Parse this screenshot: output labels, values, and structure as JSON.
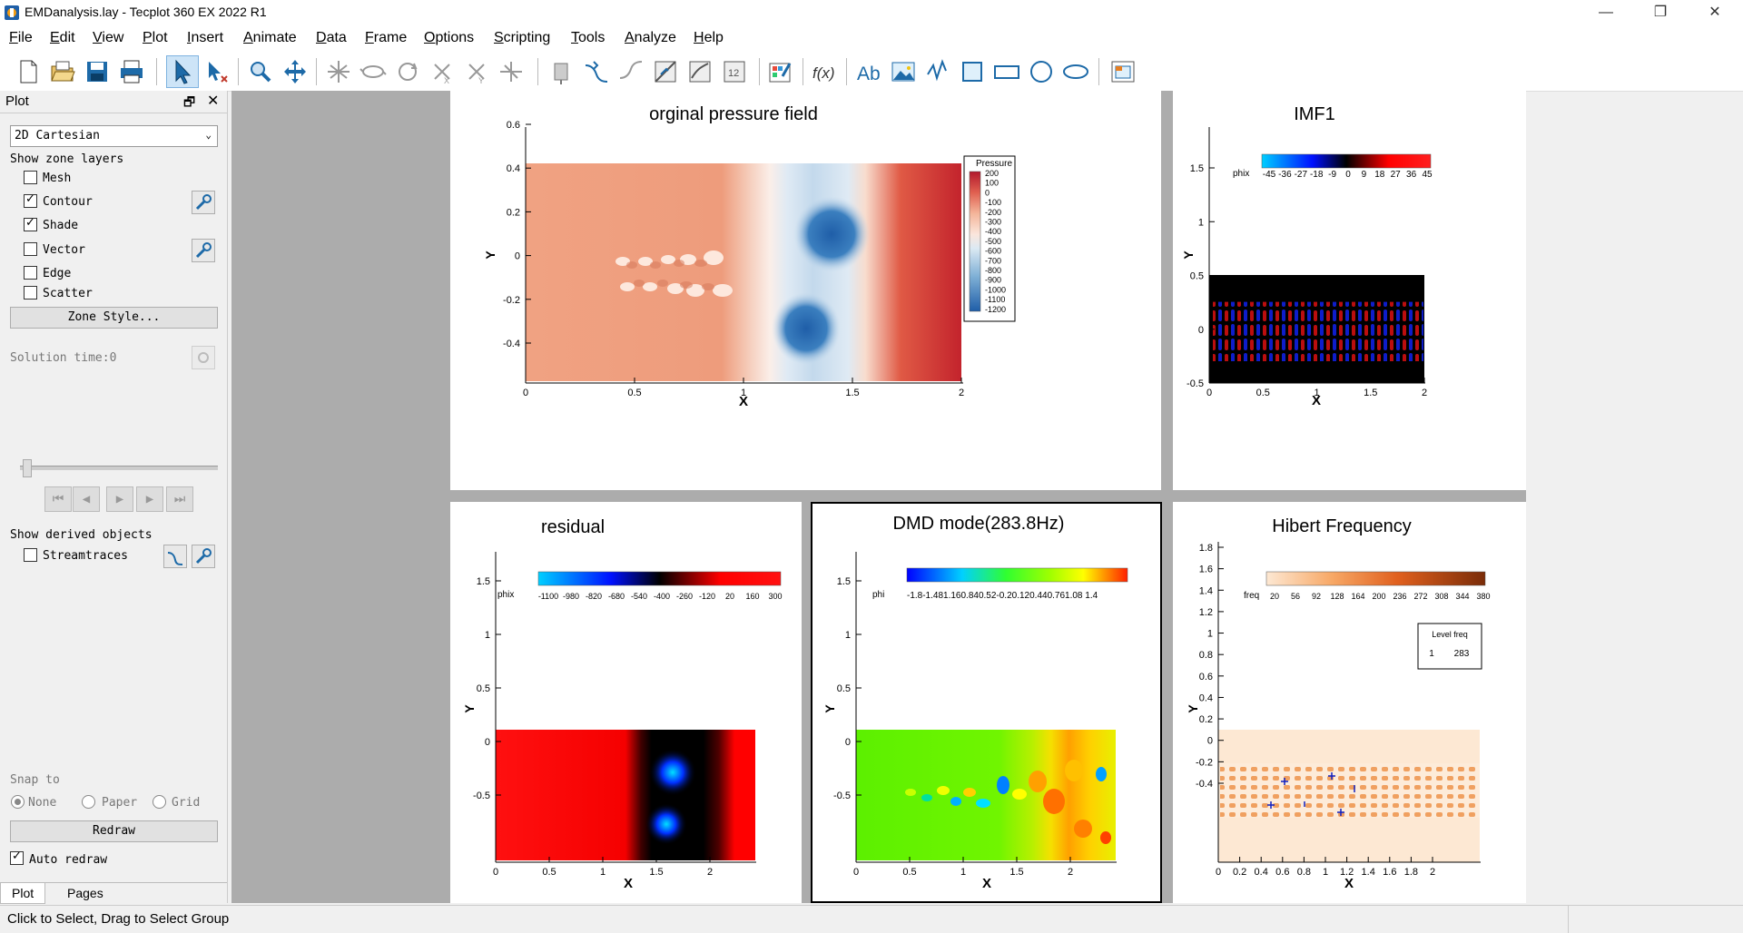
{
  "window": {
    "title": "EMDanalysis.lay - Tecplot 360 EX 2022 R1",
    "minimize": "—",
    "maximize": "❐",
    "close": "✕"
  },
  "menu": [
    {
      "label": "File",
      "u": "F",
      "rest": "ile"
    },
    {
      "label": "Edit",
      "u": "E",
      "rest": "dit"
    },
    {
      "label": "View",
      "u": "V",
      "rest": "iew"
    },
    {
      "label": "Plot",
      "u": "P",
      "rest": "lot"
    },
    {
      "label": "Insert",
      "u": "I",
      "rest": "nsert"
    },
    {
      "label": "Animate",
      "u": "A",
      "rest": "nimate"
    },
    {
      "label": "Data",
      "u": "D",
      "rest": "ata"
    },
    {
      "label": "Frame",
      "u": "F",
      "rest": "rame"
    },
    {
      "label": "Options",
      "u": "O",
      "rest": "ptions"
    },
    {
      "label": "Scripting",
      "u": "S",
      "rest": "cripting"
    },
    {
      "label": "Tools",
      "u": "T",
      "rest": "ools"
    },
    {
      "label": "Analyze",
      "u": "A",
      "rest": "nalyze"
    },
    {
      "label": "Help",
      "u": "H",
      "rest": "elp"
    }
  ],
  "sidebar": {
    "title": "Plot",
    "plot_type": "2D Cartesian",
    "show_zone_layers": "Show zone layers",
    "layers": [
      {
        "label": "Mesh",
        "checked": false
      },
      {
        "label": "Contour",
        "checked": true
      },
      {
        "label": "Shade",
        "checked": true
      },
      {
        "label": "Vector",
        "checked": false
      },
      {
        "label": "Edge",
        "checked": false
      },
      {
        "label": "Scatter",
        "checked": false
      }
    ],
    "zone_style": "Zone Style...",
    "solution_time": "Solution time:0",
    "show_derived": "Show derived objects",
    "streamtraces": "Streamtraces",
    "snap_to": "Snap to",
    "snap_none": "None",
    "snap_paper": "Paper",
    "snap_grid": "Grid",
    "redraw": "Redraw",
    "auto_redraw": "Auto redraw",
    "tab_plot": "Plot",
    "tab_pages": "Pages"
  },
  "status": "Click to Select, Drag to Select Group",
  "frames": {
    "pressure": {
      "title": "orginal pressure field",
      "xlabel": "X",
      "ylabel": "Y",
      "xticks": [
        "0",
        "0.5",
        "1",
        "1.5",
        "2"
      ],
      "yticks": [
        "0.6",
        "0.4",
        "0.2",
        "0",
        "-0.2",
        "-0.4"
      ],
      "legend_title": "Pressure",
      "legend_levels": [
        "200",
        "100",
        "0",
        "-100",
        "-200",
        "-300",
        "-400",
        "-500",
        "-600",
        "-700",
        "-800",
        "-900",
        "-1000",
        "-1100",
        "-1200"
      ]
    },
    "imf1": {
      "title": "IMF1",
      "xlabel": "X",
      "ylabel": "Y",
      "xticks": [
        "0",
        "0.5",
        "1",
        "1.5",
        "2"
      ],
      "yticks": [
        "1.5",
        "1",
        "0.5",
        "0",
        "-0.5"
      ],
      "var": "phix",
      "levels": [
        "-45",
        "-36",
        "-27",
        "-18",
        "-9",
        "0",
        "9",
        "18",
        "27",
        "36",
        "45"
      ]
    },
    "residual": {
      "title": "residual",
      "xlabel": "X",
      "ylabel": "Y",
      "xticks": [
        "0",
        "0.5",
        "1",
        "1.5",
        "2"
      ],
      "yticks": [
        "1.5",
        "1",
        "0.5",
        "0",
        "-0.5"
      ],
      "var": "phix",
      "levels": [
        "-1100",
        "-980",
        "-820",
        "-680",
        "-540",
        "-400",
        "-260",
        "-120",
        "20",
        "160",
        "300"
      ]
    },
    "dmd": {
      "title": "DMD mode(283.8Hz)",
      "xlabel": "X",
      "ylabel": "Y",
      "xticks": [
        "0",
        "0.5",
        "1",
        "1.5",
        "2"
      ],
      "yticks": [
        "1.5",
        "1",
        "0.5",
        "0",
        "-0.5"
      ],
      "var": "phi",
      "levels_text": "-1.8-1.481.160.840.52-0.20.120.440.761.08 1.4"
    },
    "hilbert": {
      "title": "Hibert Frequency",
      "xlabel": "X",
      "ylabel": "Y",
      "xticks": [
        "0",
        "0.2",
        "0.4",
        "0.6",
        "0.8",
        "1",
        "1.2",
        "1.4",
        "1.6",
        "1.8",
        "2"
      ],
      "yticks": [
        "1.8",
        "1.6",
        "1.4",
        "1.2",
        "1",
        "0.8",
        "0.6",
        "0.4",
        "0.2",
        "0",
        "-0.2",
        "-0.4"
      ],
      "var": "freq",
      "levels": [
        "20",
        "56",
        "92",
        "128",
        "164",
        "200",
        "236",
        "272",
        "308",
        "344",
        "380"
      ],
      "table_head": "Level freq",
      "table_level": "1",
      "table_freq": "283"
    }
  }
}
